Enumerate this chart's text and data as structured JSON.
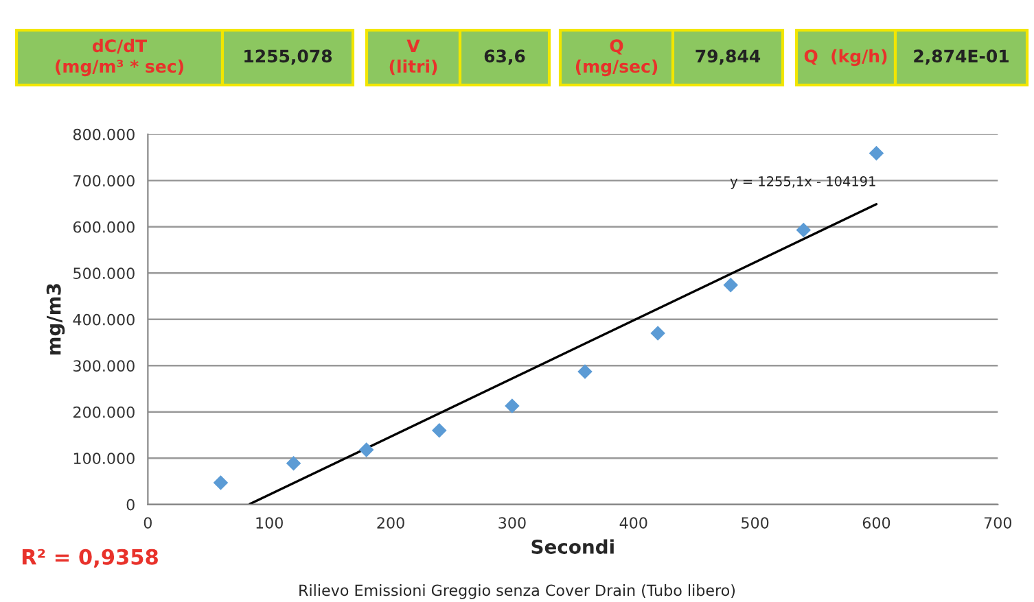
{
  "chart_data": {
    "type": "scatter",
    "title": "Rilievo Emissioni Greggio senza Cover Drain (Tubo libero)",
    "xlabel": "Secondi",
    "ylabel": "mg/m3",
    "x": [
      60,
      120,
      180,
      240,
      300,
      360,
      420,
      480,
      540,
      600
    ],
    "series": [
      {
        "color": "#5b9bd5",
        "marker": "diamond",
        "values": [
          47000,
          89000,
          118000,
          160000,
          213000,
          287000,
          370000,
          474000,
          593000,
          759000
        ]
      },
      {
        "type": "line",
        "color": "#000000",
        "marker": "none",
        "line_style": "solid",
        "x": [
          84,
          600
        ],
        "values": [
          1000,
          649000
        ]
      }
    ],
    "xlim": [
      0,
      700
    ],
    "xticks": [
      0,
      100,
      200,
      300,
      400,
      500,
      600,
      700
    ],
    "ylim": [
      0,
      800000
    ],
    "yticks": [
      0,
      {
        "value": 100000,
        "label": "100.000"
      },
      {
        "value": 200000,
        "label": "200.000"
      },
      {
        "value": 300000,
        "label": "300.000"
      },
      {
        "value": 400000,
        "label": "400.000"
      },
      {
        "value": 500000,
        "label": "500.000"
      },
      {
        "value": 600000,
        "label": "600.000"
      },
      {
        "value": 700000,
        "label": "700.000"
      },
      {
        "value": 800000,
        "label": "800.000"
      }
    ],
    "grid": "y",
    "legend": false,
    "annotations": [
      {
        "text": "y = 1255,1x - 104191",
        "x": 600,
        "y": 649000
      },
      "R² = 0,9358",
      "dC/dT\n(mg/m³ * sec)",
      "1255,078",
      "V\n(litri)",
      "63,6",
      "Q\n(mg/sec)",
      "79,844",
      "Q  (kg/h)",
      "2,874E-01"
    ]
  }
}
